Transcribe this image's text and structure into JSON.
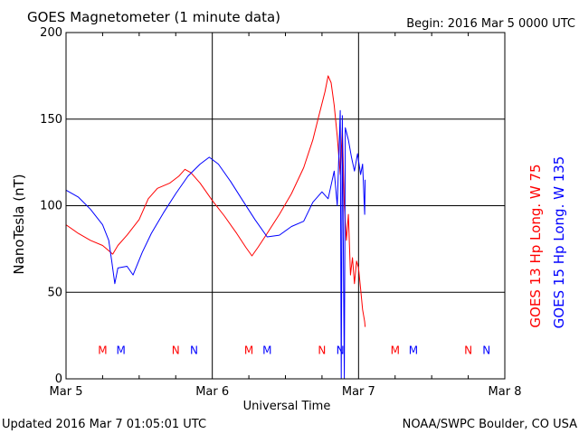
{
  "chart_data": {
    "type": "line",
    "title": "GOES Magnetometer (1 minute data)",
    "begin_label": "Begin:  2016 Mar 5 0000 UTC",
    "xlabel": "Universal Time",
    "ylabel": "NanoTesla (nT)",
    "ylim": [
      0,
      200
    ],
    "yticks": [
      0,
      50,
      100,
      150,
      200
    ],
    "xlim": [
      "2016-03-05",
      "2016-03-08"
    ],
    "xticks": [
      {
        "x": "2016-03-05",
        "label": "Mar 5"
      },
      {
        "x": "2016-03-06",
        "label": "Mar 6"
      },
      {
        "x": "2016-03-07",
        "label": "Mar 7"
      },
      {
        "x": "2016-03-08",
        "label": "Mar 8"
      }
    ],
    "grid": true,
    "series": [
      {
        "name": "GOES 13 Hp  Long. W 75",
        "color": "#ff0000",
        "points": [
          [
            "2016-03-05 00:00",
            89
          ],
          [
            "2016-03-05 02:00",
            84
          ],
          [
            "2016-03-05 04:00",
            80
          ],
          [
            "2016-03-05 06:00",
            77
          ],
          [
            "2016-03-05 07:00",
            74
          ],
          [
            "2016-03-05 07:40",
            72
          ],
          [
            "2016-03-05 08:30",
            77
          ],
          [
            "2016-03-05 10:00",
            83
          ],
          [
            "2016-03-05 12:00",
            92
          ],
          [
            "2016-03-05 13:30",
            104
          ],
          [
            "2016-03-05 15:00",
            110
          ],
          [
            "2016-03-05 17:00",
            113
          ],
          [
            "2016-03-05 18:30",
            117
          ],
          [
            "2016-03-05 19:30",
            121
          ],
          [
            "2016-03-05 20:30",
            119
          ],
          [
            "2016-03-05 22:00",
            113
          ],
          [
            "2016-03-06 00:00",
            103
          ],
          [
            "2016-03-06 02:00",
            94
          ],
          [
            "2016-03-06 04:00",
            84
          ],
          [
            "2016-03-06 05:30",
            76
          ],
          [
            "2016-03-06 06:30",
            71
          ],
          [
            "2016-03-06 07:30",
            76
          ],
          [
            "2016-03-06 09:00",
            84
          ],
          [
            "2016-03-06 11:00",
            95
          ],
          [
            "2016-03-06 13:00",
            107
          ],
          [
            "2016-03-06 15:00",
            122
          ],
          [
            "2016-03-06 16:30",
            138
          ],
          [
            "2016-03-06 17:30",
            152
          ],
          [
            "2016-03-06 18:30",
            166
          ],
          [
            "2016-03-06 19:00",
            175
          ],
          [
            "2016-03-06 19:30",
            171
          ],
          [
            "2016-03-06 20:00",
            158
          ],
          [
            "2016-03-06 20:30",
            140
          ],
          [
            "2016-03-06 21:00",
            118
          ],
          [
            "2016-03-06 21:20",
            145
          ],
          [
            "2016-03-06 21:40",
            100
          ],
          [
            "2016-03-06 22:00",
            80
          ],
          [
            "2016-03-06 22:20",
            95
          ],
          [
            "2016-03-06 22:40",
            60
          ],
          [
            "2016-03-06 23:00",
            70
          ],
          [
            "2016-03-06 23:20",
            55
          ],
          [
            "2016-03-06 23:40",
            68
          ],
          [
            "2016-03-07 00:00",
            64
          ],
          [
            "2016-03-07 00:20",
            52
          ],
          [
            "2016-03-07 00:40",
            40
          ],
          [
            "2016-03-07 01:00",
            33
          ],
          [
            "2016-03-07 01:05",
            30
          ]
        ]
      },
      {
        "name": "GOES 15 Hp  Long. W 135",
        "color": "#0000ff",
        "points": [
          [
            "2016-03-05 00:00",
            109
          ],
          [
            "2016-03-05 02:00",
            105
          ],
          [
            "2016-03-05 04:00",
            98
          ],
          [
            "2016-03-05 06:00",
            89
          ],
          [
            "2016-03-05 07:00",
            80
          ],
          [
            "2016-03-05 07:30",
            68
          ],
          [
            "2016-03-05 08:00",
            55
          ],
          [
            "2016-03-05 08:30",
            64
          ],
          [
            "2016-03-05 10:00",
            65
          ],
          [
            "2016-03-05 11:00",
            60
          ],
          [
            "2016-03-05 12:30",
            73
          ],
          [
            "2016-03-05 14:00",
            84
          ],
          [
            "2016-03-05 16:00",
            96
          ],
          [
            "2016-03-05 18:00",
            107
          ],
          [
            "2016-03-05 20:00",
            117
          ],
          [
            "2016-03-05 22:00",
            124
          ],
          [
            "2016-03-05 23:30",
            128
          ],
          [
            "2016-03-06 01:00",
            124
          ],
          [
            "2016-03-06 03:00",
            114
          ],
          [
            "2016-03-06 05:00",
            103
          ],
          [
            "2016-03-06 07:00",
            92
          ],
          [
            "2016-03-06 09:00",
            82
          ],
          [
            "2016-03-06 11:00",
            83
          ],
          [
            "2016-03-06 13:00",
            88
          ],
          [
            "2016-03-06 15:00",
            91
          ],
          [
            "2016-03-06 16:30",
            102
          ],
          [
            "2016-03-06 18:00",
            108
          ],
          [
            "2016-03-06 19:00",
            104
          ],
          [
            "2016-03-06 20:00",
            120
          ],
          [
            "2016-03-06 20:30",
            100
          ],
          [
            "2016-03-06 21:00",
            155
          ],
          [
            "2016-03-06 21:10",
            0
          ],
          [
            "2016-03-06 21:20",
            152
          ],
          [
            "2016-03-06 21:40",
            0
          ],
          [
            "2016-03-06 21:50",
            145
          ],
          [
            "2016-03-06 22:20",
            138
          ],
          [
            "2016-03-06 22:50",
            128
          ],
          [
            "2016-03-06 23:20",
            120
          ],
          [
            "2016-03-06 23:50",
            130
          ],
          [
            "2016-03-07 00:20",
            118
          ],
          [
            "2016-03-07 00:40",
            124
          ],
          [
            "2016-03-07 01:00",
            95
          ],
          [
            "2016-03-07 01:05",
            115
          ]
        ]
      }
    ],
    "markers": [
      {
        "x": "2016-03-05 06:00",
        "label": "M",
        "color": "#ff0000"
      },
      {
        "x": "2016-03-05 09:00",
        "label": "M",
        "color": "#0000ff"
      },
      {
        "x": "2016-03-05 18:00",
        "label": "N",
        "color": "#ff0000"
      },
      {
        "x": "2016-03-05 21:00",
        "label": "N",
        "color": "#0000ff"
      },
      {
        "x": "2016-03-06 06:00",
        "label": "M",
        "color": "#ff0000"
      },
      {
        "x": "2016-03-06 09:00",
        "label": "M",
        "color": "#0000ff"
      },
      {
        "x": "2016-03-06 18:00",
        "label": "N",
        "color": "#ff0000"
      },
      {
        "x": "2016-03-06 21:00",
        "label": "N",
        "color": "#0000ff"
      },
      {
        "x": "2016-03-07 06:00",
        "label": "M",
        "color": "#ff0000"
      },
      {
        "x": "2016-03-07 09:00",
        "label": "M",
        "color": "#0000ff"
      },
      {
        "x": "2016-03-07 18:00",
        "label": "N",
        "color": "#ff0000"
      },
      {
        "x": "2016-03-07 21:00",
        "label": "N",
        "color": "#0000ff"
      }
    ],
    "marker_value": 17,
    "legend_placement": "right, vertical"
  },
  "footer": {
    "updated": "Updated 2016 Mar  7 01:05:01 UTC",
    "credit": "NOAA/SWPC Boulder, CO USA"
  }
}
